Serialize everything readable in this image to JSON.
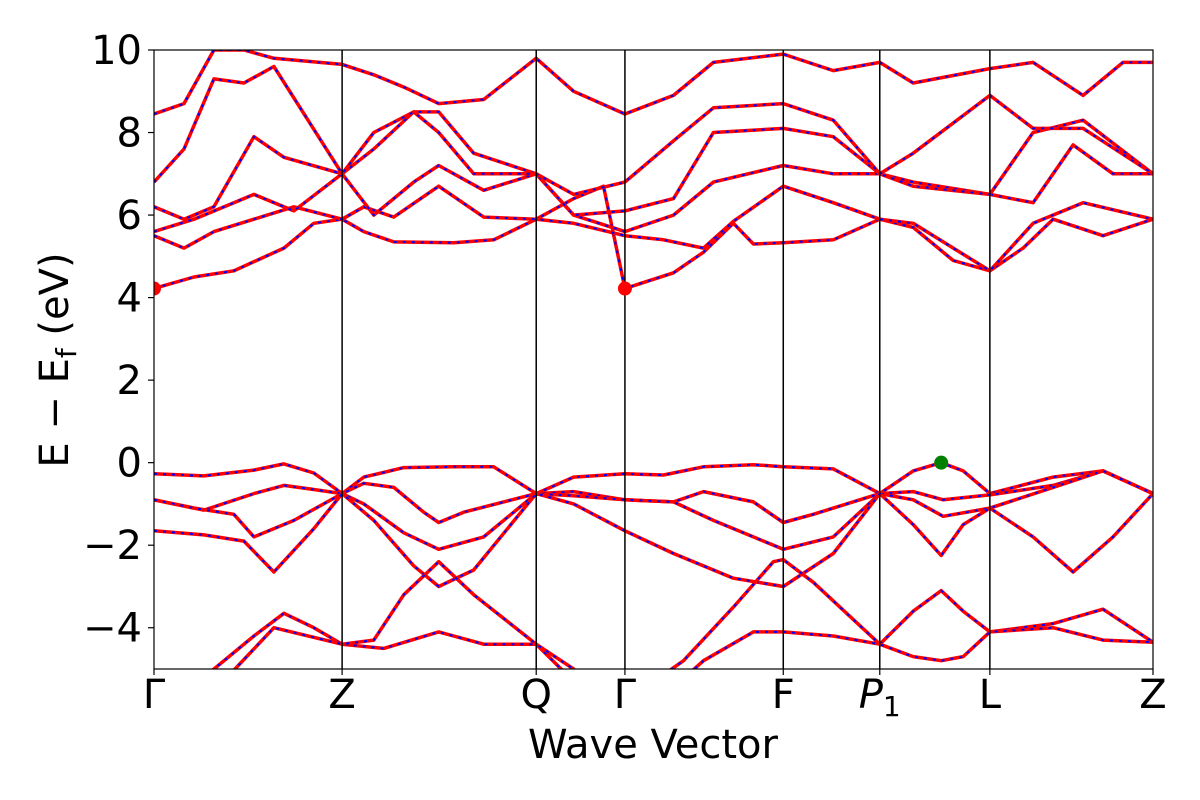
{
  "chart_data": {
    "type": "line",
    "xlabel": "Wave Vector",
    "ylabel": "E − E",
    "ylabel_subscript": "f",
    "ylabel_unit": " (eV)",
    "ylim": [
      -5,
      10
    ],
    "yticks": [
      -4,
      -2,
      0,
      2,
      4,
      6,
      8,
      10
    ],
    "ytick_labels": [
      "−4",
      "−2",
      "0",
      "2",
      "4",
      "6",
      "8",
      "10"
    ],
    "xlim": [
      0,
      1
    ],
    "kpoints": [
      {
        "label": "Γ",
        "sub": "",
        "x": 0.0
      },
      {
        "label": "Z",
        "sub": "",
        "x": 0.1883
      },
      {
        "label": "Q",
        "sub": "",
        "x": 0.3826
      },
      {
        "label": "Γ",
        "sub": "",
        "x": 0.4714
      },
      {
        "label": "F",
        "sub": "",
        "x": 0.6299
      },
      {
        "label": "P",
        "sub": "1",
        "x": 0.7265
      },
      {
        "label": "L",
        "sub": "",
        "x": 0.8367
      },
      {
        "label": "Z",
        "sub": "",
        "x": 1.0
      }
    ],
    "colors": {
      "spin_up": "#ff0000",
      "spin_down": "#0000ff",
      "vbm": "#008000",
      "cbm": "#ff0000"
    },
    "markers": [
      {
        "name": "cbm",
        "x": 0.4714,
        "y": 4.22
      },
      {
        "name": "vbm",
        "x": 0.788,
        "y": 0.0
      }
    ],
    "series": [
      {
        "values": [
          [
            0.0,
            -0.27
          ],
          [
            0.05,
            -0.32
          ],
          [
            0.1,
            -0.18
          ],
          [
            0.13,
            -0.03
          ],
          [
            0.16,
            -0.25
          ],
          [
            0.1883,
            -0.75
          ],
          [
            0.21,
            -0.35
          ],
          [
            0.25,
            -0.12
          ],
          [
            0.3,
            -0.1
          ],
          [
            0.34,
            -0.1
          ],
          [
            0.3826,
            -0.75
          ],
          [
            0.42,
            -0.35
          ],
          [
            0.4714,
            -0.27
          ],
          [
            0.51,
            -0.3
          ],
          [
            0.55,
            -0.1
          ],
          [
            0.6,
            -0.05
          ],
          [
            0.6299,
            -0.1
          ],
          [
            0.68,
            -0.15
          ],
          [
            0.7265,
            -0.75
          ],
          [
            0.76,
            -0.2
          ],
          [
            0.788,
            0.0
          ],
          [
            0.81,
            -0.2
          ],
          [
            0.8367,
            -0.75
          ],
          [
            0.9,
            -0.35
          ],
          [
            0.95,
            -0.2
          ],
          [
            1.0,
            -0.75
          ]
        ]
      },
      {
        "values": [
          [
            0.0,
            -0.9
          ],
          [
            0.05,
            -1.15
          ],
          [
            0.1,
            -0.75
          ],
          [
            0.13,
            -0.55
          ],
          [
            0.16,
            -0.65
          ],
          [
            0.1883,
            -0.75
          ],
          [
            0.21,
            -0.5
          ],
          [
            0.24,
            -0.6
          ],
          [
            0.27,
            -1.2
          ],
          [
            0.285,
            -1.45
          ],
          [
            0.31,
            -1.2
          ],
          [
            0.3826,
            -0.75
          ],
          [
            0.42,
            -0.7
          ],
          [
            0.4714,
            -0.9
          ],
          [
            0.52,
            -0.95
          ],
          [
            0.55,
            -0.7
          ],
          [
            0.6,
            -0.95
          ],
          [
            0.6299,
            -1.45
          ],
          [
            0.66,
            -1.25
          ],
          [
            0.7265,
            -0.75
          ],
          [
            0.76,
            -0.7
          ],
          [
            0.79,
            -0.9
          ],
          [
            0.8367,
            -0.78
          ],
          [
            0.9,
            -0.55
          ],
          [
            0.95,
            -0.2
          ],
          [
            1.0,
            -0.75
          ]
        ]
      },
      {
        "values": [
          [
            0.0,
            -0.9
          ],
          [
            0.04,
            -1.1
          ],
          [
            0.08,
            -1.25
          ],
          [
            0.1,
            -1.8
          ],
          [
            0.14,
            -1.4
          ],
          [
            0.1883,
            -0.75
          ],
          [
            0.21,
            -1.0
          ],
          [
            0.25,
            -1.7
          ],
          [
            0.285,
            -2.1
          ],
          [
            0.33,
            -1.8
          ],
          [
            0.3826,
            -0.75
          ],
          [
            0.42,
            -0.8
          ],
          [
            0.4714,
            -0.9
          ],
          [
            0.52,
            -0.95
          ],
          [
            0.56,
            -1.4
          ],
          [
            0.6299,
            -2.1
          ],
          [
            0.68,
            -1.8
          ],
          [
            0.7265,
            -0.75
          ],
          [
            0.76,
            -0.9
          ],
          [
            0.79,
            -1.3
          ],
          [
            0.8367,
            -1.1
          ],
          [
            0.9,
            -0.6
          ],
          [
            0.95,
            -0.2
          ],
          [
            1.0,
            -0.75
          ]
        ]
      },
      {
        "values": [
          [
            0.0,
            -1.65
          ],
          [
            0.05,
            -1.75
          ],
          [
            0.09,
            -1.9
          ],
          [
            0.12,
            -2.65
          ],
          [
            0.16,
            -1.6
          ],
          [
            0.1883,
            -0.75
          ],
          [
            0.22,
            -1.4
          ],
          [
            0.26,
            -2.5
          ],
          [
            0.285,
            -3.0
          ],
          [
            0.32,
            -2.6
          ],
          [
            0.3826,
            -0.75
          ],
          [
            0.42,
            -1.0
          ],
          [
            0.4714,
            -1.65
          ],
          [
            0.52,
            -2.2
          ],
          [
            0.58,
            -2.8
          ],
          [
            0.6299,
            -3.0
          ],
          [
            0.68,
            -2.2
          ],
          [
            0.7265,
            -0.75
          ],
          [
            0.76,
            -1.5
          ],
          [
            0.788,
            -2.25
          ],
          [
            0.81,
            -1.5
          ],
          [
            0.8367,
            -1.1
          ],
          [
            0.88,
            -1.8
          ],
          [
            0.92,
            -2.65
          ],
          [
            0.96,
            -1.8
          ],
          [
            1.0,
            -0.75
          ]
        ]
      },
      {
        "values": [
          [
            0.0,
            -5.7
          ],
          [
            0.05,
            -5.2
          ],
          [
            0.1,
            -4.2
          ],
          [
            0.13,
            -3.65
          ],
          [
            0.16,
            -4.0
          ],
          [
            0.1883,
            -4.4
          ],
          [
            0.23,
            -4.5
          ],
          [
            0.285,
            -4.1
          ],
          [
            0.33,
            -4.4
          ],
          [
            0.3826,
            -4.4
          ],
          [
            0.42,
            -5.3
          ],
          [
            0.4714,
            -5.8
          ],
          [
            0.53,
            -4.8
          ],
          [
            0.58,
            -3.5
          ],
          [
            0.62,
            -2.4
          ],
          [
            0.6299,
            -2.35
          ],
          [
            0.66,
            -2.9
          ],
          [
            0.7265,
            -4.4
          ],
          [
            0.76,
            -3.6
          ],
          [
            0.788,
            -3.1
          ],
          [
            0.81,
            -3.6
          ],
          [
            0.8367,
            -4.1
          ],
          [
            0.9,
            -3.9
          ],
          [
            0.95,
            -3.55
          ],
          [
            1.0,
            -4.35
          ]
        ]
      },
      {
        "values": [
          [
            0.0,
            -6.5
          ],
          [
            0.05,
            -5.8
          ],
          [
            0.12,
            -4.0
          ],
          [
            0.1883,
            -4.4
          ],
          [
            0.22,
            -4.3
          ],
          [
            0.25,
            -3.2
          ],
          [
            0.285,
            -2.4
          ],
          [
            0.32,
            -3.2
          ],
          [
            0.3826,
            -4.4
          ],
          [
            0.42,
            -5.0
          ],
          [
            0.4714,
            -6.5
          ],
          [
            0.55,
            -4.8
          ],
          [
            0.6,
            -4.1
          ],
          [
            0.6299,
            -4.1
          ],
          [
            0.68,
            -4.2
          ],
          [
            0.7265,
            -4.4
          ],
          [
            0.76,
            -4.7
          ],
          [
            0.788,
            -4.8
          ],
          [
            0.81,
            -4.7
          ],
          [
            0.8367,
            -4.1
          ],
          [
            0.9,
            -4.0
          ],
          [
            0.95,
            -4.3
          ],
          [
            1.0,
            -4.35
          ]
        ]
      },
      {
        "values": [
          [
            0.0,
            4.22
          ],
          [
            0.04,
            4.5
          ],
          [
            0.08,
            4.65
          ],
          [
            0.13,
            5.2
          ],
          [
            0.16,
            5.8
          ],
          [
            0.1883,
            5.9
          ],
          [
            0.21,
            5.6
          ],
          [
            0.24,
            5.35
          ],
          [
            0.3,
            5.33
          ],
          [
            0.34,
            5.4
          ],
          [
            0.3826,
            5.9
          ],
          [
            0.42,
            6.4
          ],
          [
            0.45,
            6.7
          ],
          [
            0.4714,
            4.22
          ],
          [
            0.52,
            4.6
          ],
          [
            0.55,
            5.1
          ],
          [
            0.58,
            5.8
          ],
          [
            0.6,
            5.3
          ],
          [
            0.6299,
            5.33
          ],
          [
            0.68,
            5.4
          ],
          [
            0.7265,
            5.9
          ],
          [
            0.76,
            5.7
          ],
          [
            0.8,
            4.9
          ],
          [
            0.8367,
            4.65
          ],
          [
            0.87,
            5.2
          ],
          [
            0.9,
            5.9
          ],
          [
            0.95,
            5.5
          ],
          [
            1.0,
            5.9
          ]
        ]
      },
      {
        "values": [
          [
            0.0,
            5.5
          ],
          [
            0.03,
            5.2
          ],
          [
            0.06,
            5.6
          ],
          [
            0.1,
            5.9
          ],
          [
            0.14,
            6.2
          ],
          [
            0.1883,
            5.9
          ],
          [
            0.21,
            6.2
          ],
          [
            0.24,
            5.95
          ],
          [
            0.285,
            6.7
          ],
          [
            0.33,
            5.95
          ],
          [
            0.3826,
            5.9
          ],
          [
            0.42,
            5.8
          ],
          [
            0.4714,
            5.5
          ],
          [
            0.51,
            5.4
          ],
          [
            0.55,
            5.2
          ],
          [
            0.58,
            5.85
          ],
          [
            0.6299,
            6.7
          ],
          [
            0.68,
            6.3
          ],
          [
            0.7265,
            5.9
          ],
          [
            0.76,
            5.8
          ],
          [
            0.8367,
            4.65
          ],
          [
            0.88,
            5.8
          ],
          [
            0.93,
            6.3
          ],
          [
            1.0,
            5.9
          ]
        ]
      },
      {
        "values": [
          [
            0.0,
            5.6
          ],
          [
            0.04,
            5.9
          ],
          [
            0.08,
            6.3
          ],
          [
            0.1,
            6.5
          ],
          [
            0.14,
            6.1
          ],
          [
            0.1883,
            7.0
          ],
          [
            0.22,
            6.0
          ],
          [
            0.26,
            6.8
          ],
          [
            0.285,
            7.2
          ],
          [
            0.33,
            6.6
          ],
          [
            0.3826,
            7.0
          ],
          [
            0.42,
            6.0
          ],
          [
            0.4714,
            5.6
          ],
          [
            0.52,
            6.0
          ],
          [
            0.56,
            6.8
          ],
          [
            0.6299,
            7.2
          ],
          [
            0.68,
            7.0
          ],
          [
            0.7265,
            7.0
          ],
          [
            0.76,
            6.8
          ],
          [
            0.8367,
            6.5
          ],
          [
            0.88,
            6.3
          ],
          [
            0.92,
            7.7
          ],
          [
            0.96,
            7.0
          ],
          [
            1.0,
            7.0
          ]
        ]
      },
      {
        "values": [
          [
            0.0,
            6.2
          ],
          [
            0.03,
            5.9
          ],
          [
            0.06,
            6.2
          ],
          [
            0.1,
            7.9
          ],
          [
            0.13,
            7.4
          ],
          [
            0.1883,
            7.0
          ],
          [
            0.22,
            7.6
          ],
          [
            0.26,
            8.5
          ],
          [
            0.285,
            8.5
          ],
          [
            0.32,
            7.5
          ],
          [
            0.3826,
            7.0
          ],
          [
            0.42,
            6.0
          ],
          [
            0.4714,
            6.1
          ],
          [
            0.52,
            6.4
          ],
          [
            0.56,
            8.0
          ],
          [
            0.6299,
            8.1
          ],
          [
            0.68,
            7.9
          ],
          [
            0.7265,
            7.0
          ],
          [
            0.76,
            6.7
          ],
          [
            0.8367,
            6.5
          ],
          [
            0.88,
            8.0
          ],
          [
            0.93,
            8.3
          ],
          [
            1.0,
            7.0
          ]
        ]
      },
      {
        "values": [
          [
            0.0,
            6.8
          ],
          [
            0.03,
            7.6
          ],
          [
            0.06,
            9.3
          ],
          [
            0.09,
            9.2
          ],
          [
            0.12,
            9.6
          ],
          [
            0.1883,
            7.0
          ],
          [
            0.22,
            8.0
          ],
          [
            0.26,
            8.5
          ],
          [
            0.285,
            8.0
          ],
          [
            0.32,
            7.0
          ],
          [
            0.3826,
            7.0
          ],
          [
            0.42,
            6.5
          ],
          [
            0.4714,
            6.8
          ],
          [
            0.52,
            7.8
          ],
          [
            0.56,
            8.6
          ],
          [
            0.6299,
            8.7
          ],
          [
            0.68,
            8.3
          ],
          [
            0.7265,
            7.0
          ],
          [
            0.76,
            7.5
          ],
          [
            0.8367,
            8.9
          ],
          [
            0.88,
            8.1
          ],
          [
            0.93,
            8.1
          ],
          [
            1.0,
            7.0
          ]
        ]
      },
      {
        "values": [
          [
            0.0,
            8.45
          ],
          [
            0.03,
            8.7
          ],
          [
            0.06,
            10.0
          ],
          [
            0.09,
            10.0
          ],
          [
            0.12,
            9.8
          ],
          [
            0.1883,
            9.65
          ],
          [
            0.22,
            9.4
          ],
          [
            0.25,
            9.1
          ],
          [
            0.285,
            8.7
          ],
          [
            0.33,
            8.8
          ],
          [
            0.3826,
            9.8
          ],
          [
            0.42,
            9.0
          ],
          [
            0.4714,
            8.45
          ],
          [
            0.52,
            8.9
          ],
          [
            0.56,
            9.7
          ],
          [
            0.6299,
            9.9
          ],
          [
            0.68,
            9.5
          ],
          [
            0.7265,
            9.7
          ],
          [
            0.76,
            9.2
          ],
          [
            0.8367,
            9.55
          ],
          [
            0.88,
            9.7
          ],
          [
            0.93,
            8.9
          ],
          [
            0.97,
            9.7
          ],
          [
            1.0,
            9.7
          ]
        ]
      }
    ]
  }
}
